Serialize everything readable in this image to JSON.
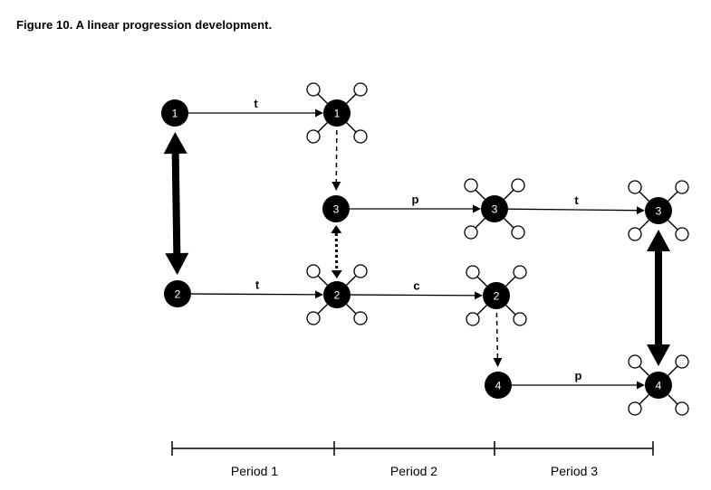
{
  "figure": {
    "title": "Figure 10. A linear progression development."
  },
  "diagram": {
    "nodes": [
      {
        "id": "n1a",
        "label": "1",
        "satellites": false
      },
      {
        "id": "n1b",
        "label": "1",
        "satellites": true
      },
      {
        "id": "n3a",
        "label": "3",
        "satellites": false
      },
      {
        "id": "n3b",
        "label": "3",
        "satellites": true
      },
      {
        "id": "n3c",
        "label": "3",
        "satellites": true
      },
      {
        "id": "n2a",
        "label": "2",
        "satellites": false
      },
      {
        "id": "n2b",
        "label": "2",
        "satellites": true
      },
      {
        "id": "n2c",
        "label": "2",
        "satellites": true
      },
      {
        "id": "n4a",
        "label": "4",
        "satellites": false
      },
      {
        "id": "n4b",
        "label": "4",
        "satellites": true
      }
    ],
    "edges": [
      {
        "from": "n1a",
        "to": "n1b",
        "label": "t",
        "style": "solid"
      },
      {
        "from": "n3a",
        "to": "n3b",
        "label": "p",
        "style": "solid"
      },
      {
        "from": "n3b",
        "to": "n3c",
        "label": "t",
        "style": "solid"
      },
      {
        "from": "n2a",
        "to": "n2b",
        "label": "t",
        "style": "solid"
      },
      {
        "from": "n2b",
        "to": "n2c",
        "label": "c",
        "style": "solid"
      },
      {
        "from": "n4a",
        "to": "n4b",
        "label": "p",
        "style": "solid"
      },
      {
        "from": "n1b",
        "to": "n3a",
        "label": "",
        "style": "dashed"
      },
      {
        "from": "n2c",
        "to": "n4a",
        "label": "",
        "style": "dashed"
      },
      {
        "from": "n3a",
        "to": "n2b",
        "label": "",
        "style": "dotted-double"
      },
      {
        "from": "n1a",
        "to": "n2a",
        "label": "",
        "style": "thick-double"
      },
      {
        "from": "n3c",
        "to": "n4b",
        "label": "",
        "style": "thick-double"
      }
    ]
  },
  "timeline": {
    "periods": [
      "Period 1",
      "Period 2",
      "Period 3"
    ]
  }
}
